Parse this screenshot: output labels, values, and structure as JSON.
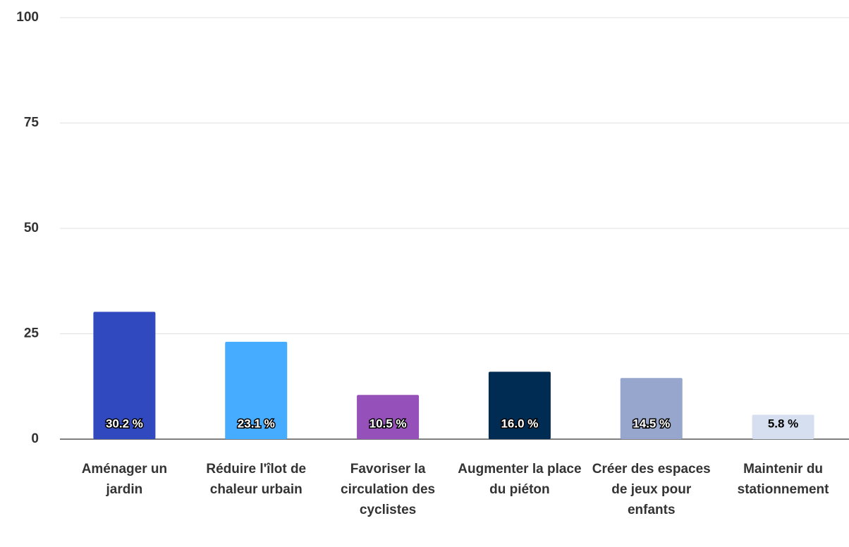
{
  "chart_data": {
    "type": "bar",
    "categories": [
      "Aménager un jardin",
      "Réduire l'îlot de chaleur urbain",
      "Favoriser la circulation des cyclistes",
      "Augmenter la place du piéton",
      "Créer des espaces de jeux pour enfants",
      "Maintenir du stationnement"
    ],
    "values": [
      30.2,
      23.1,
      10.5,
      16.0,
      14.5,
      5.8
    ],
    "value_labels": [
      "30.2 %",
      "23.1 %",
      "10.5 %",
      "16.0 %",
      "14.5 %",
      "5.8 %"
    ],
    "colors": [
      "#3049be",
      "#46acff",
      "#9550b9",
      "#002b52",
      "#97a6cc",
      "#d6dff0"
    ],
    "ylim": [
      0,
      100
    ],
    "yticks": [
      0,
      25,
      50,
      75,
      100
    ],
    "grid": true
  }
}
